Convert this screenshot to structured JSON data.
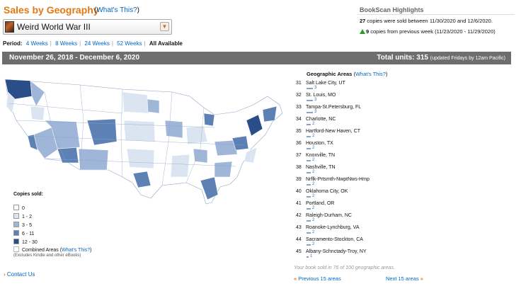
{
  "header": {
    "title": "Sales by Geography",
    "help_label": "What's This?",
    "book_title": "Weird World War III"
  },
  "period": {
    "label": "Period:",
    "options": [
      "4 Weeks",
      "8 Weeks",
      "24 Weeks",
      "52 Weeks"
    ],
    "selected": "All Available"
  },
  "highlights": {
    "title": "BookScan Highlights",
    "copies_sold": "27",
    "copies_sold_text": " copies were sold between 11/30/2020 and 12/6/2020.",
    "change": "9",
    "change_text": " copies from previous week (11/23/2020 - 11/29/2020)",
    "change_color": "#2e9b2e"
  },
  "banner": {
    "date_range": "November 26, 2018 - December 6, 2020",
    "total_label": "Total units: 315",
    "total_note": "(updated Fridays by 12am Pacific)"
  },
  "legend": {
    "title": "Copies sold:",
    "items": [
      {
        "label": "0",
        "color": "#ffffff"
      },
      {
        "label": "1 - 2",
        "color": "#dbe5f1"
      },
      {
        "label": "3 - 5",
        "color": "#9fb6d9"
      },
      {
        "label": "6 - 11",
        "color": "#5e81b5"
      },
      {
        "label": "12 - 30",
        "color": "#2a4e8a"
      }
    ],
    "combined_label": "Combined Areas",
    "combined_help": "What's This?",
    "note": "(Excludes Kindle and other eBooks)"
  },
  "map": {
    "region_colors": [
      "#ffffff",
      "#dbe5f1",
      "#9fb6d9",
      "#5e81b5",
      "#2a4e8a"
    ]
  },
  "geo": {
    "title": "Geographic Areas",
    "help": "What's This?",
    "rows": [
      {
        "rank": "31",
        "name": "Salt Lake City, UT",
        "count": "3",
        "value": 3
      },
      {
        "rank": "32",
        "name": "St. Louis, MO",
        "count": "3",
        "value": 3
      },
      {
        "rank": "33",
        "name": "Tampa-St.Petersburg, FL",
        "count": "3",
        "value": 3
      },
      {
        "rank": "34",
        "name": "Charlotte, NC",
        "count": "2",
        "value": 2
      },
      {
        "rank": "35",
        "name": "Hartford-New Haven, CT",
        "count": "2",
        "value": 2
      },
      {
        "rank": "36",
        "name": "Houston, TX",
        "count": "2",
        "value": 2
      },
      {
        "rank": "37",
        "name": "Knoxville, TN",
        "count": "2",
        "value": 2
      },
      {
        "rank": "38",
        "name": "Nashville, TN",
        "count": "2",
        "value": 2
      },
      {
        "rank": "39",
        "name": "Nrflk-Prtsmth-NwptNws-Hmp",
        "count": "2",
        "value": 2
      },
      {
        "rank": "40",
        "name": "Oklahoma City, OK",
        "count": "2",
        "value": 2
      },
      {
        "rank": "41",
        "name": "Portland, OR",
        "count": "2",
        "value": 2
      },
      {
        "rank": "42",
        "name": "Raleigh-Durham, NC",
        "count": "2",
        "value": 2
      },
      {
        "rank": "43",
        "name": "Roanoke-Lynchburg, VA",
        "count": "2",
        "value": 2
      },
      {
        "rank": "44",
        "name": "Sacramento-Stockton, CA",
        "count": "2",
        "value": 2
      },
      {
        "rank": "45",
        "name": "Albany-Schnctady-Troy, NY",
        "count": "1",
        "value": 1
      }
    ],
    "sold_note": "Your book sold in 76 of 100 geographic areas.",
    "prev": "Previous 15 areas",
    "next": "Next 15 areas"
  },
  "footer": {
    "contact": "Contact Us"
  }
}
